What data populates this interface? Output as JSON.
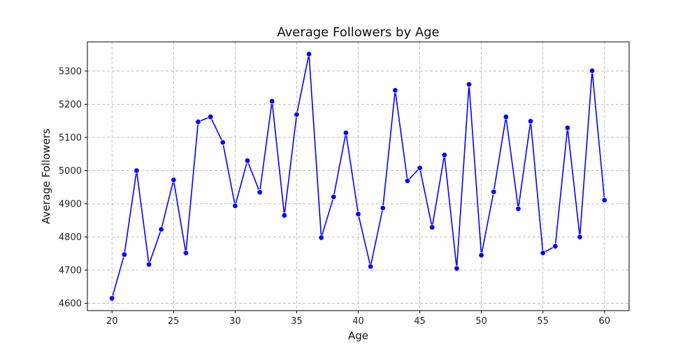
{
  "chart_data": {
    "type": "line",
    "title": "Average Followers by Age",
    "xlabel": "Age",
    "ylabel": "Average Followers",
    "xlim": [
      18,
      62
    ],
    "ylim": [
      4578,
      5388
    ],
    "xticks": [
      20,
      25,
      30,
      35,
      40,
      45,
      50,
      55,
      60
    ],
    "yticks": [
      4600,
      4700,
      4800,
      4900,
      5000,
      5100,
      5200,
      5300
    ],
    "grid": true,
    "legend": "none",
    "series": [
      {
        "color": "#0000ff",
        "marker": "circle",
        "x": [
          20,
          21,
          22,
          23,
          24,
          25,
          26,
          27,
          28,
          29,
          30,
          31,
          32,
          33,
          34,
          35,
          36,
          37,
          38,
          39,
          40,
          41,
          42,
          43,
          44,
          45,
          46,
          47,
          48,
          49,
          50,
          51,
          52,
          53,
          54,
          55,
          56,
          57,
          58,
          59,
          60
        ],
        "y": [
          4615,
          4747,
          5000,
          4717,
          4823,
          4972,
          4752,
          5147,
          5162,
          5085,
          4894,
          5030,
          4935,
          5209,
          4865,
          5169,
          5351,
          4798,
          4921,
          5114,
          4869,
          4711,
          4887,
          5242,
          4969,
          5008,
          4829,
          5047,
          4705,
          5260,
          4745,
          4936,
          5162,
          4885,
          5149,
          4752,
          4772,
          5129,
          4800,
          5301,
          4911
        ]
      }
    ]
  }
}
